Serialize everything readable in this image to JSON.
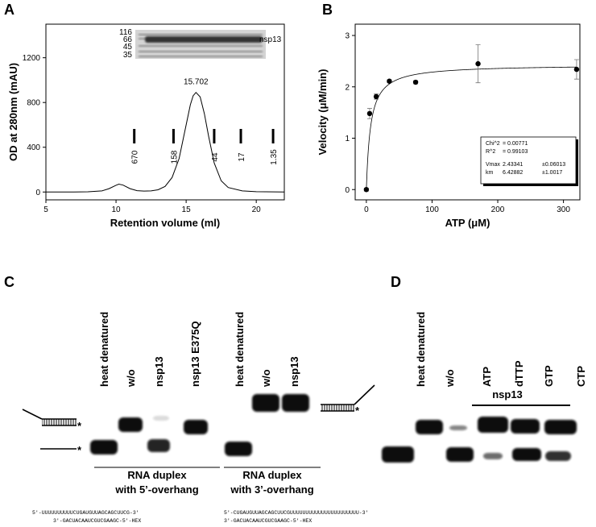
{
  "chart_data": [
    {
      "type": "line",
      "panel": "A",
      "y_label": "OD at 280nm (mAU)",
      "x_label": "Retention volume (ml)",
      "x": [
        5,
        7,
        8,
        9,
        9.5,
        10,
        10.2,
        10.5,
        11,
        11.5,
        12,
        12.5,
        13,
        13.5,
        14,
        14.5,
        15,
        15.3,
        15.5,
        15.7,
        16,
        16.3,
        16.6,
        17,
        17.5,
        18,
        19,
        20,
        22
      ],
      "values": [
        0,
        0,
        2,
        10,
        30,
        60,
        70,
        62,
        30,
        12,
        8,
        10,
        20,
        50,
        130,
        300,
        600,
        780,
        860,
        890,
        850,
        700,
        500,
        260,
        100,
        40,
        10,
        3,
        0
      ],
      "color": "#000000",
      "xlim": [
        5,
        22
      ],
      "xticks": [
        5,
        10,
        15,
        20
      ],
      "ylim": [
        -70,
        1500
      ],
      "yticks": [
        0,
        400,
        800,
        1200
      ],
      "peak": 15.702,
      "markers": {
        "x": [
          11.3,
          14.1,
          17.0,
          18.9,
          21.2
        ],
        "labels": [
          "670",
          "158",
          "44",
          "17",
          "1.35"
        ]
      },
      "inset": {
        "ladder": [
          "116",
          "66",
          "45",
          "35"
        ],
        "band_label": "nsp13"
      }
    },
    {
      "type": "scatter",
      "panel": "B",
      "y_label": "Velocity (μM/min)",
      "x_label": "ATP (μM)",
      "x": [
        0,
        5,
        15,
        35,
        75,
        170,
        320
      ],
      "values": [
        0,
        1.48,
        1.81,
        2.11,
        2.09,
        2.45,
        2.34
      ],
      "errors": [
        0.03,
        0.1,
        0.05,
        0.03,
        0.03,
        0.37,
        0.19
      ],
      "color": "#000000",
      "xlim": [
        -17,
        325
      ],
      "xticks": [
        0,
        100,
        200,
        300
      ],
      "ylim": [
        -0.2,
        3.22
      ],
      "yticks": [
        0,
        1,
        2,
        3
      ],
      "fit_stats": [
        {
          "name": "Chi^2",
          "text": "= 0.00771"
        },
        {
          "name": "R^2",
          "text": "= 0.99103"
        },
        {
          "name": "Vmax",
          "value": 2.43341,
          "error": "±0.06013"
        },
        {
          "name": "km",
          "value": 6.42882,
          "error": "±1.0017"
        }
      ]
    }
  ],
  "gels": [
    {
      "panel": "C",
      "lanes": [
        "heat denatured",
        "w/o",
        "nsp13",
        "nsp13 E375Q",
        "heat denatured",
        "w/o",
        "nsp13"
      ],
      "marker": "*",
      "groups": [
        {
          "lines": [
            "RNA duplex",
            "with 5’-overhang"
          ]
        },
        {
          "lines": [
            "RNA duplex",
            "with 3’-overhang"
          ]
        }
      ],
      "sequences": [
        [
          "5′-UUUUUUUUUUCUGAUGUUAGCAGCUUCG-3′",
          "3′-GACUACAAUCGUCGAAGC-5′-HEX"
        ],
        [
          "5′-CUGAUGUUAGCAGCUUCGUUUUUUUUUUUUUUUUUUUUUU-3′",
          "3′-GACUACAAUCGUCGAAGC-5′-HEX"
        ]
      ]
    },
    {
      "panel": "D",
      "lanes": [
        "heat denatured",
        "w/o",
        "ATP",
        "dTTP",
        "GTP",
        "CTP"
      ],
      "groups": [
        {
          "lines": [
            "nsp13"
          ]
        }
      ]
    }
  ]
}
